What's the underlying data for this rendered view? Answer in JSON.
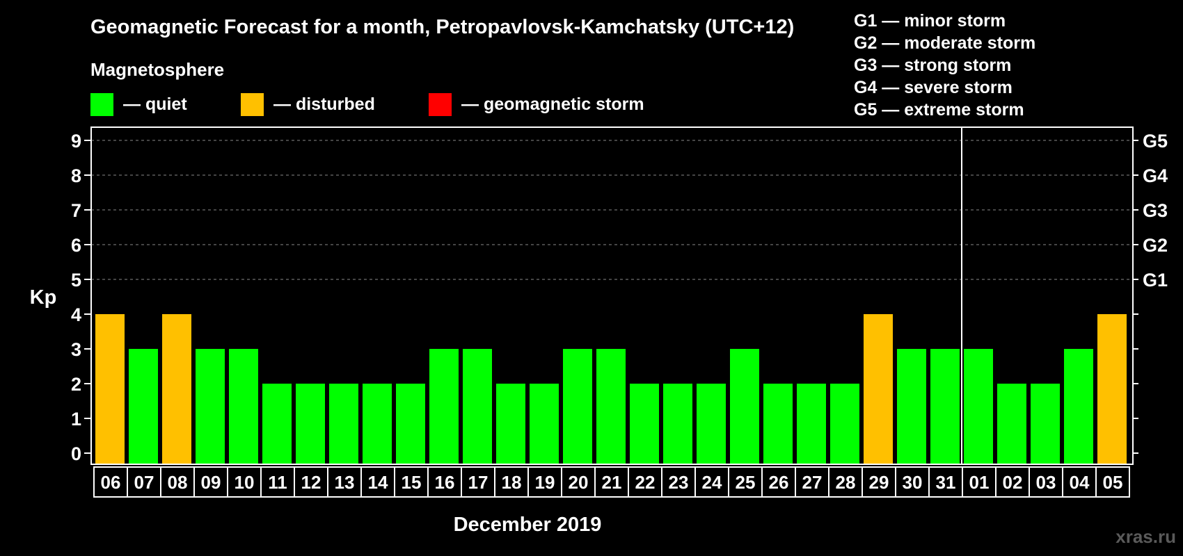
{
  "chart_data": {
    "type": "bar",
    "title": "Geomagnetic Forecast for a month, Petropavlovsk-Kamchatsky (UTC+12)",
    "legend_title": "Magnetosphere",
    "legend": [
      {
        "label": "— quiet",
        "color": "#00ff00"
      },
      {
        "label": "— disturbed",
        "color": "#ffc000"
      },
      {
        "label": "— geomagnetic storm",
        "color": "#ff0000"
      }
    ],
    "storm_scale": [
      "G1 — minor storm",
      "G2 — moderate storm",
      "G3 — strong storm",
      "G4 — severe storm",
      "G5 — extreme storm"
    ],
    "ylabel": "Kp",
    "xlabel": "December 2019",
    "ylim": [
      0,
      9
    ],
    "yticks": [
      "0",
      "1",
      "2",
      "3",
      "4",
      "5",
      "6",
      "7",
      "8",
      "9"
    ],
    "right_ticks": [
      {
        "value": 5,
        "label": "G1"
      },
      {
        "value": 6,
        "label": "G2"
      },
      {
        "value": 7,
        "label": "G3"
      },
      {
        "value": 8,
        "label": "G4"
      },
      {
        "value": 9,
        "label": "G5"
      }
    ],
    "categories": [
      "06",
      "07",
      "08",
      "09",
      "10",
      "11",
      "12",
      "13",
      "14",
      "15",
      "16",
      "17",
      "18",
      "19",
      "20",
      "21",
      "22",
      "23",
      "24",
      "25",
      "26",
      "27",
      "28",
      "29",
      "30",
      "31",
      "01",
      "02",
      "03",
      "04",
      "05"
    ],
    "values": [
      4,
      3,
      4,
      3,
      3,
      2,
      2,
      2,
      2,
      2,
      3,
      3,
      2,
      2,
      3,
      3,
      2,
      2,
      2,
      3,
      2,
      2,
      2,
      4,
      3,
      3,
      3,
      2,
      2,
      3,
      4
    ],
    "month_divider_after_index": 25,
    "colors": {
      "quiet": "#00ff00",
      "disturbed": "#ffc000",
      "storm": "#ff0000",
      "grid": "#8a8a8a"
    },
    "watermark": "xras.ru"
  }
}
